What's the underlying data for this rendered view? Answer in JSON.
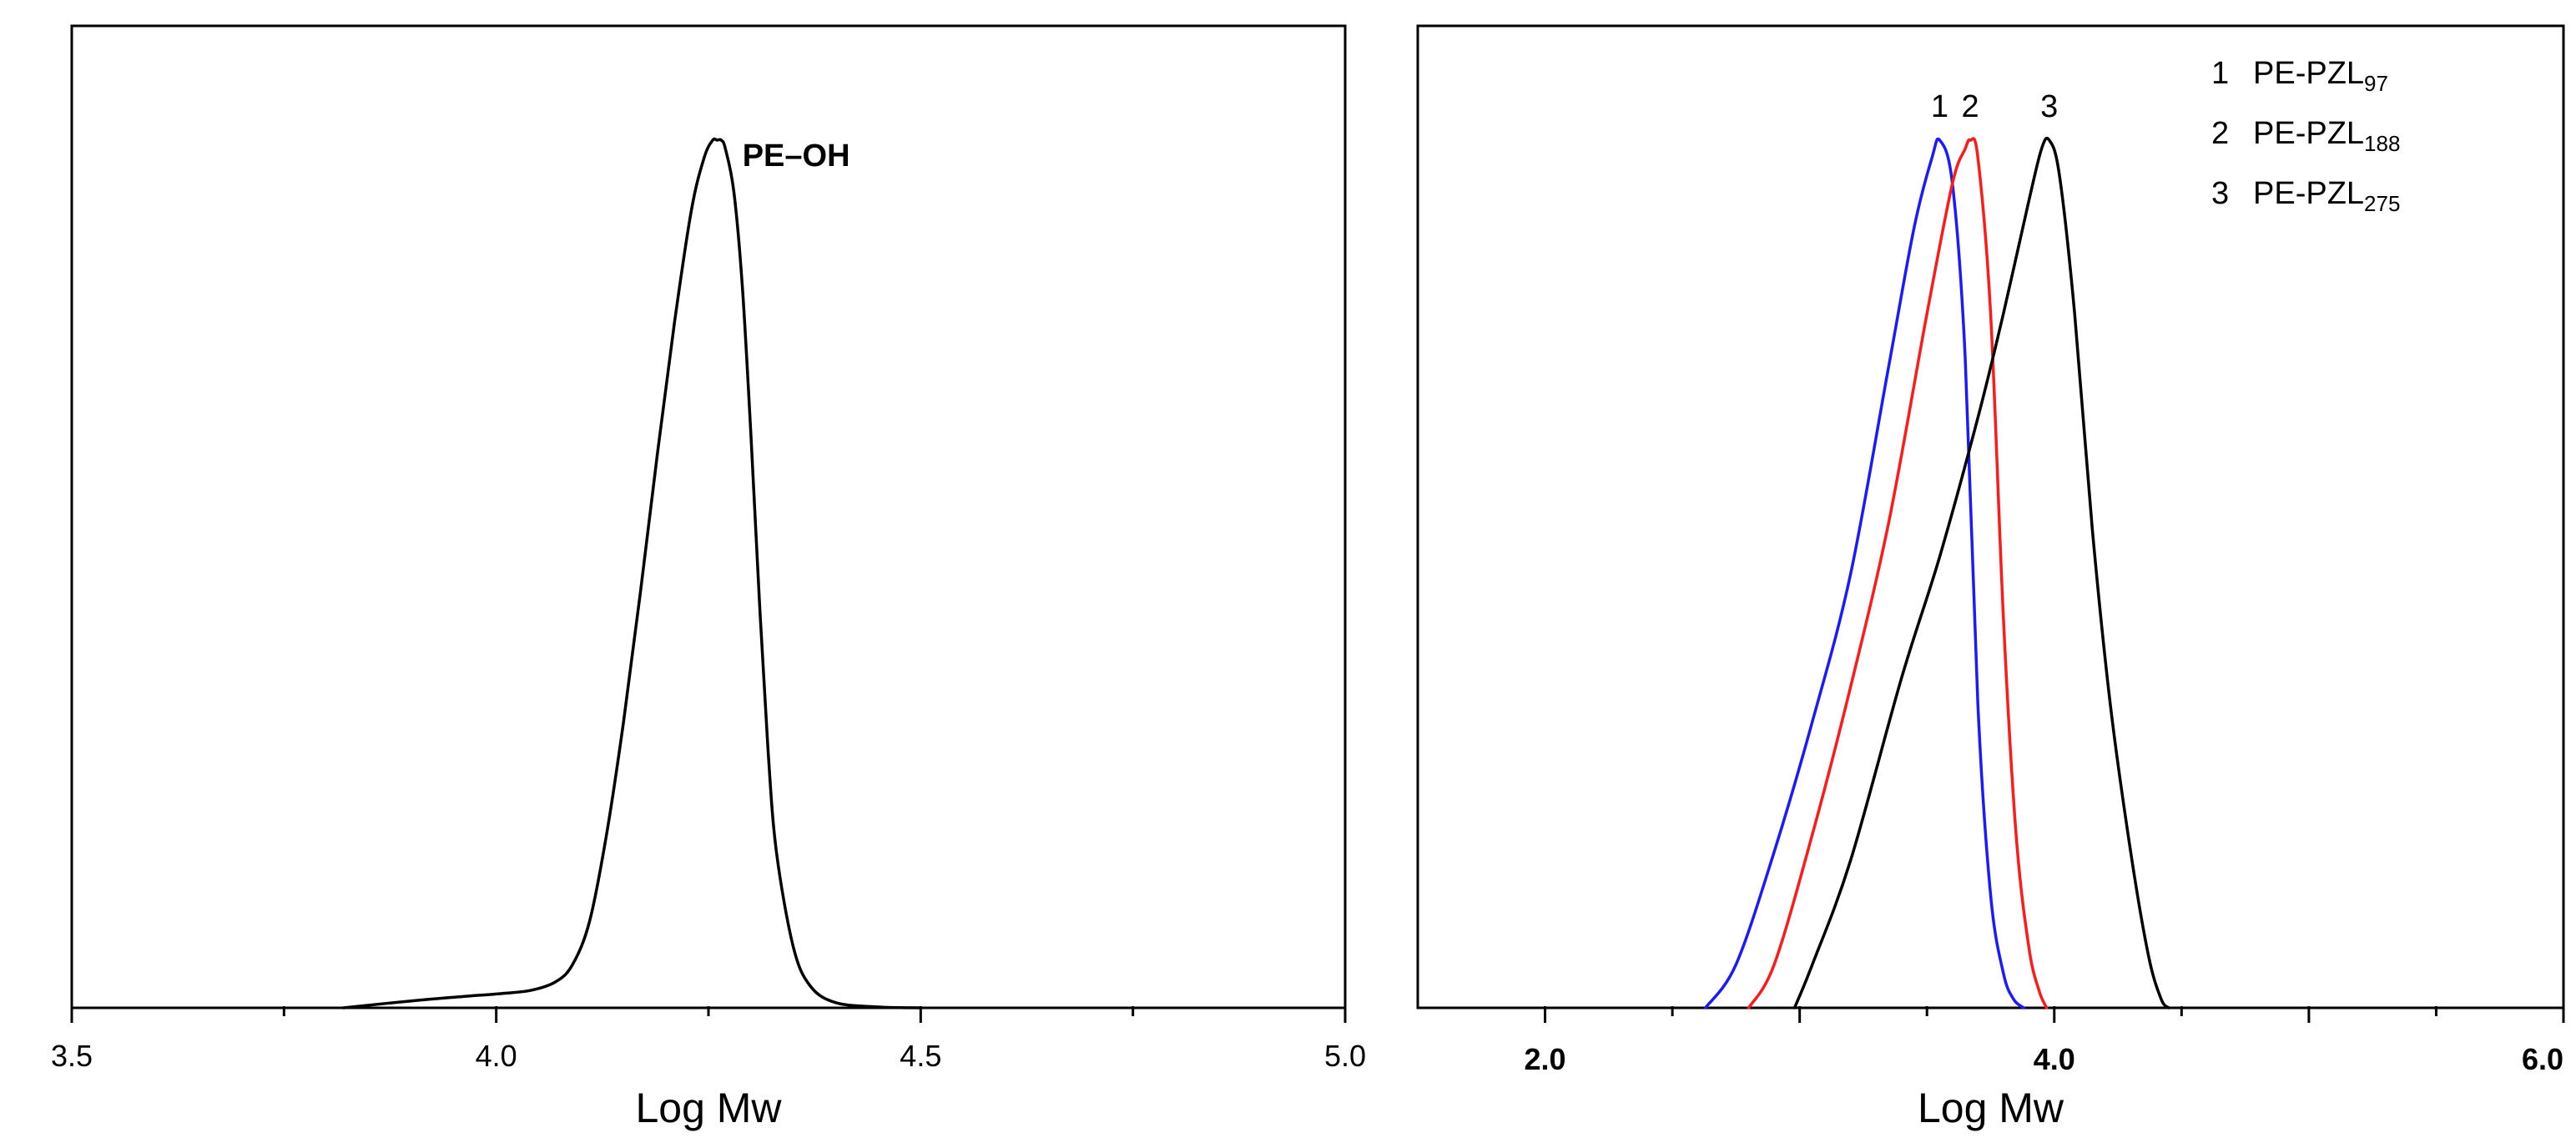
{
  "colors": {
    "black": "#000000",
    "blue": "#1a1aff",
    "red": "#ff1a1a"
  },
  "chart_data": [
    {
      "type": "line",
      "title": "",
      "xlabel": "Log Mw",
      "ylabel": "",
      "xlim": [
        3.5,
        5.0
      ],
      "ylim": [
        0,
        1.0
      ],
      "major_ticks": [
        3.5,
        4.0,
        4.5,
        5.0
      ],
      "minor_ticks": [
        3.75,
        4.25,
        4.75
      ],
      "tick_labels": [
        "3.5",
        "4.0",
        "4.5",
        "5.0"
      ],
      "series": [
        {
          "name": "PE–OH",
          "color": "#000000",
          "x": [
            3.82,
            3.9,
            3.96,
            4.0,
            4.04,
            4.07,
            4.09,
            4.11,
            4.13,
            4.15,
            4.17,
            4.19,
            4.21,
            4.23,
            4.245,
            4.255,
            4.26,
            4.265,
            4.27,
            4.28,
            4.29,
            4.3,
            4.31,
            4.32,
            4.33,
            4.35,
            4.37,
            4.4,
            4.45,
            4.5
          ],
          "y": [
            0.0,
            0.008,
            0.013,
            0.016,
            0.02,
            0.03,
            0.05,
            0.1,
            0.2,
            0.33,
            0.48,
            0.64,
            0.79,
            0.92,
            0.98,
            1.0,
            1.0,
            1.0,
            0.99,
            0.94,
            0.83,
            0.66,
            0.47,
            0.3,
            0.18,
            0.07,
            0.025,
            0.006,
            0.001,
            0.0
          ]
        }
      ],
      "annotations": [
        {
          "text": "PE–OH",
          "x": 4.29,
          "y": 0.97
        }
      ]
    },
    {
      "type": "line",
      "title": "",
      "xlabel": "Log Mw",
      "ylabel": "",
      "xlim": [
        1.5,
        6.0
      ],
      "ylim": [
        0,
        1.0
      ],
      "major_ticks": [
        2.0,
        3.0,
        4.0,
        5.0,
        6.0
      ],
      "minor_ticks": [
        2.5,
        3.5,
        4.5,
        5.5
      ],
      "tick_labels": [
        "2.0",
        "4.0",
        "6.0"
      ],
      "tick_label_values": [
        2.0,
        4.0,
        6.0
      ],
      "series": [
        {
          "name": "PE-PZL",
          "label": "1",
          "subscript": "97",
          "color": "#1a1aff",
          "x": [
            2.63,
            2.75,
            2.9,
            3.05,
            3.2,
            3.35,
            3.45,
            3.52,
            3.55,
            3.6,
            3.65,
            3.7,
            3.75,
            3.8,
            3.84,
            3.88
          ],
          "y": [
            0.0,
            0.05,
            0.18,
            0.33,
            0.5,
            0.74,
            0.9,
            0.98,
            1.0,
            0.95,
            0.75,
            0.35,
            0.13,
            0.04,
            0.01,
            0.0
          ]
        },
        {
          "name": "PE-PZL",
          "label": "2",
          "subscript": "188",
          "color": "#ff1a1a",
          "x": [
            2.8,
            2.9,
            3.05,
            3.2,
            3.35,
            3.5,
            3.6,
            3.65,
            3.67,
            3.7,
            3.75,
            3.8,
            3.85,
            3.9,
            3.94,
            3.97
          ],
          "y": [
            0.0,
            0.05,
            0.2,
            0.37,
            0.56,
            0.8,
            0.95,
            0.99,
            1.0,
            0.98,
            0.8,
            0.45,
            0.2,
            0.07,
            0.02,
            0.0
          ]
        },
        {
          "name": "PE-PZL",
          "label": "3",
          "subscript": "275",
          "color": "#000000",
          "x": [
            2.98,
            3.05,
            3.2,
            3.4,
            3.55,
            3.7,
            3.8,
            3.9,
            3.95,
            3.98,
            4.02,
            4.08,
            4.15,
            4.22,
            4.3,
            4.37,
            4.42,
            4.45
          ],
          "y": [
            0.0,
            0.05,
            0.17,
            0.38,
            0.52,
            0.68,
            0.8,
            0.93,
            0.99,
            1.0,
            0.96,
            0.8,
            0.55,
            0.35,
            0.18,
            0.06,
            0.01,
            0.0
          ]
        }
      ],
      "peak_labels": [
        {
          "text": "1",
          "x": 3.55
        },
        {
          "text": "2",
          "x": 3.67
        },
        {
          "text": "3",
          "x": 3.98
        }
      ],
      "legend": {
        "placement": "top-right",
        "entries": [
          {
            "num": "1",
            "text": "PE-PZL",
            "sub": "97"
          },
          {
            "num": "2",
            "text": "PE-PZL",
            "sub": "188"
          },
          {
            "num": "3",
            "text": "PE-PZL",
            "sub": "275"
          }
        ]
      }
    }
  ]
}
